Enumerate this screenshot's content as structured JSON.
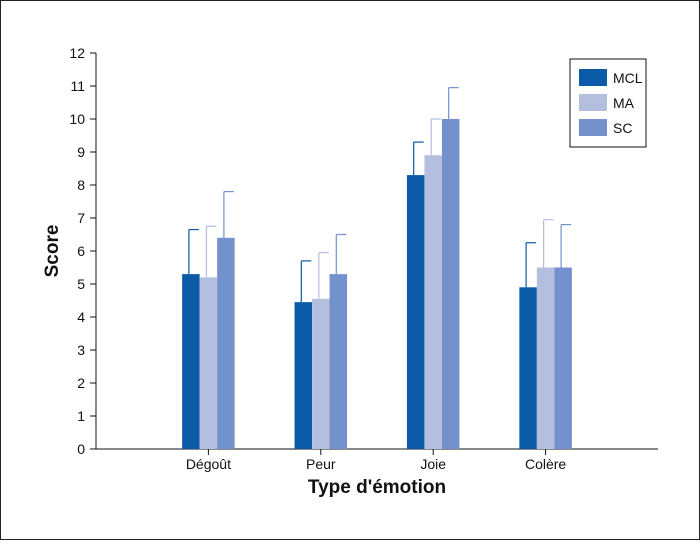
{
  "chart_data": {
    "type": "bar",
    "xlabel": "Type d'émotion",
    "ylabel": "Score",
    "ylim": [
      0,
      12
    ],
    "yticks": [
      "0",
      "1",
      "2",
      "3",
      "4",
      "5",
      "6",
      "7",
      "8",
      "9",
      "10",
      "11",
      "12"
    ],
    "grid": false,
    "legend_position": "top-right",
    "categories": [
      "Dégoût",
      "Peur",
      "Joie",
      "Colère"
    ],
    "series": [
      {
        "name": "MCL",
        "color": "#0a5aa8",
        "values": [
          5.3,
          4.45,
          8.3,
          4.9
        ],
        "errors": [
          1.35,
          1.25,
          1.0,
          1.35
        ]
      },
      {
        "name": "MA",
        "color": "#b4bfe0",
        "values": [
          5.2,
          4.55,
          8.9,
          5.5
        ],
        "errors": [
          1.55,
          1.4,
          1.1,
          1.45
        ]
      },
      {
        "name": "SC",
        "color": "#7391cc",
        "values": [
          6.4,
          5.3,
          10.0,
          5.5
        ],
        "errors": [
          1.4,
          1.2,
          0.95,
          1.3
        ]
      }
    ]
  }
}
